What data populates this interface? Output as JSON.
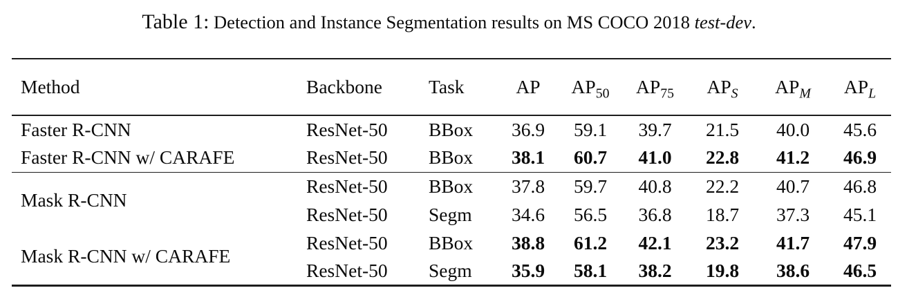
{
  "title": {
    "prefix": "Table 1:",
    "text": "Detection and Instance Segmentation results on MS COCO 2018",
    "emphasis": "test-dev",
    "suffix": "."
  },
  "table": {
    "headers": {
      "method": "Method",
      "backbone": "Backbone",
      "task": "Task",
      "metrics": [
        {
          "base": "AP",
          "sub": ""
        },
        {
          "base": "AP",
          "sub": "50"
        },
        {
          "base": "AP",
          "sub": "75"
        },
        {
          "base": "AP",
          "sub": "S"
        },
        {
          "base": "AP",
          "sub": "M"
        },
        {
          "base": "AP",
          "sub": "L"
        }
      ]
    },
    "groups": [
      {
        "method": "Faster R-CNN",
        "rows": [
          {
            "backbone": "ResNet-50",
            "task": "BBox",
            "bold": false,
            "values": [
              "36.9",
              "59.1",
              "39.7",
              "21.5",
              "40.0",
              "45.6"
            ]
          }
        ]
      },
      {
        "method": "Faster R-CNN w/ CARAFE",
        "rows": [
          {
            "backbone": "ResNet-50",
            "task": "BBox",
            "bold": true,
            "values": [
              "38.1",
              "60.7",
              "41.0",
              "22.8",
              "41.2",
              "46.9"
            ]
          }
        ]
      },
      {
        "method": "Mask R-CNN",
        "rows": [
          {
            "backbone": "ResNet-50",
            "task": "BBox",
            "bold": false,
            "values": [
              "37.8",
              "59.7",
              "40.8",
              "22.2",
              "40.7",
              "46.8"
            ]
          },
          {
            "backbone": "ResNet-50",
            "task": "Segm",
            "bold": false,
            "values": [
              "34.6",
              "56.5",
              "36.8",
              "18.7",
              "37.3",
              "45.1"
            ]
          }
        ]
      },
      {
        "method": "Mask R-CNN w/ CARAFE",
        "rows": [
          {
            "backbone": "ResNet-50",
            "task": "BBox",
            "bold": true,
            "values": [
              "38.8",
              "61.2",
              "42.1",
              "23.2",
              "41.7",
              "47.9"
            ]
          },
          {
            "backbone": "ResNet-50",
            "task": "Segm",
            "bold": true,
            "values": [
              "35.9",
              "58.1",
              "38.2",
              "19.8",
              "38.6",
              "46.5"
            ]
          }
        ]
      }
    ]
  },
  "colors": {
    "text": "#0b0b0b",
    "rule": "#1c1c1c",
    "background": "#ffffff"
  }
}
